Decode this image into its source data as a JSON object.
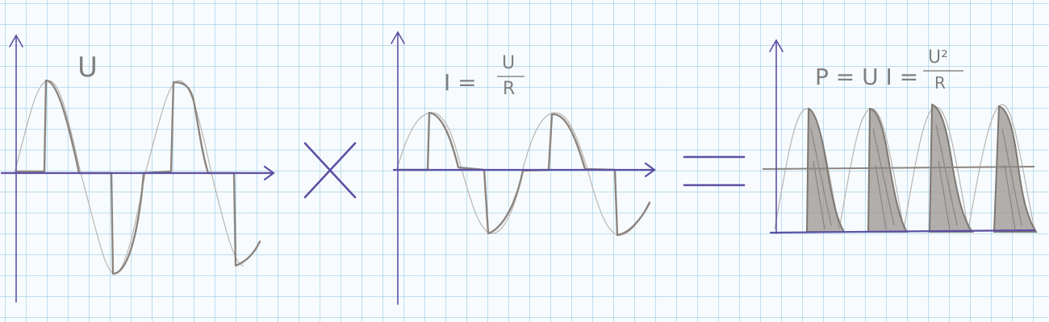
{
  "panels": {
    "voltage": {
      "label": "U"
    },
    "current": {
      "label_prefix": "I =",
      "fraction_num": "U",
      "fraction_den": "R"
    },
    "power": {
      "label_prefix": "P = U I =",
      "fraction_num": "U²",
      "fraction_den": "R"
    }
  },
  "operators": {
    "multiply": "multiply-sign",
    "equals": "equals-sign"
  },
  "colors": {
    "axis": "#5d4fa3",
    "pencil": "#8c8580",
    "shading": "#9a948f",
    "grid": "#78b9e1"
  }
}
